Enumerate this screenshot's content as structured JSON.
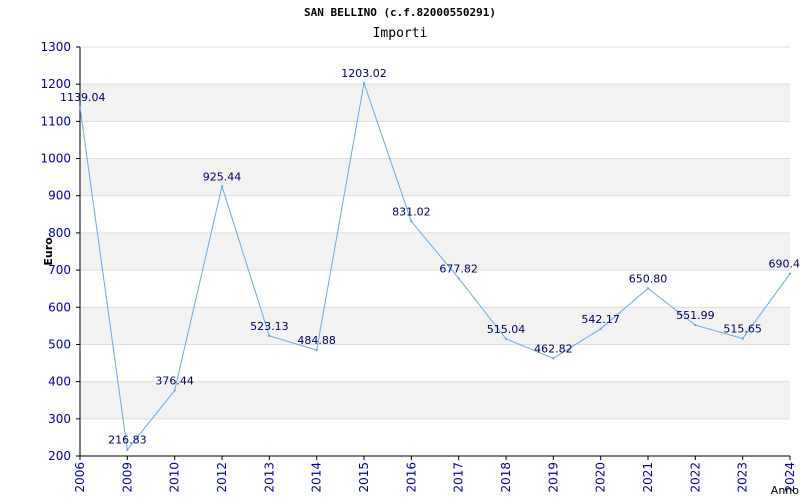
{
  "chart_data": {
    "type": "line",
    "title": "SAN BELLINO (c.f.82000550291)",
    "subtitle": "Importi",
    "xlabel": "Anno",
    "ylabel": "Euro",
    "ylim": [
      200,
      1300
    ],
    "y_ticks": [
      200,
      300,
      400,
      500,
      600,
      700,
      800,
      900,
      1000,
      1100,
      1200,
      1300
    ],
    "grid": "horizontal alternating bands",
    "categories": [
      "2006",
      "2009",
      "2010",
      "2012",
      "2013",
      "2014",
      "2015",
      "2016",
      "2017",
      "2018",
      "2019",
      "2020",
      "2021",
      "2022",
      "2023",
      "2024"
    ],
    "values": [
      1139.04,
      216.83,
      376.44,
      925.44,
      523.13,
      484.88,
      1203.02,
      831.02,
      677.82,
      515.04,
      462.82,
      542.17,
      650.8,
      551.99,
      515.65,
      690.4
    ],
    "labels": [
      "1139.04",
      "216.83",
      "376.44",
      "925.44",
      "523.13",
      "484.88",
      "1203.02",
      "831.02",
      "677.82",
      "515.04",
      "462.82",
      "542.17",
      "650.80",
      "551.99",
      "515.65",
      "690.4"
    ],
    "colors": {
      "line": "#66aaee",
      "tick_text": "#0000aa",
      "data_label": "#000066",
      "band": "#f2f2f2",
      "axis": "#000000"
    }
  }
}
